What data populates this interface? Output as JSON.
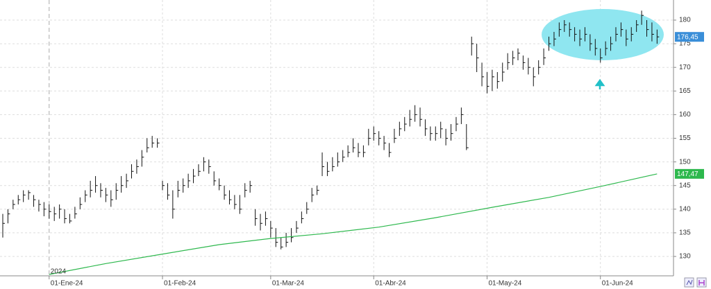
{
  "chart_data": {
    "type": "ohlc",
    "annotation": "2024",
    "categories": [
      null,
      null,
      null,
      null,
      null,
      null,
      null,
      null,
      null,
      "01-Ene-24",
      null,
      null,
      null,
      null,
      null,
      null,
      null,
      null,
      null,
      null,
      null,
      null,
      null,
      null,
      null,
      null,
      null,
      null,
      null,
      null,
      null,
      "01-Feb-24",
      null,
      null,
      null,
      null,
      null,
      null,
      null,
      null,
      null,
      null,
      null,
      null,
      null,
      null,
      null,
      null,
      null,
      null,
      null,
      null,
      "01-Mar-24",
      null,
      null,
      null,
      null,
      null,
      null,
      null,
      null,
      null,
      null,
      null,
      null,
      null,
      null,
      null,
      null,
      null,
      null,
      null,
      "01-Abr-24",
      null,
      null,
      null,
      null,
      null,
      null,
      null,
      null,
      null,
      null,
      null,
      null,
      null,
      null,
      null,
      null,
      null,
      null,
      null,
      null,
      null,
      "01-May-24",
      null,
      null,
      null,
      null,
      null,
      null,
      null,
      null,
      null,
      null,
      null,
      null,
      null,
      null,
      null,
      null,
      null,
      null,
      null,
      null,
      null,
      "01-Jun-24",
      null,
      null,
      null,
      null,
      null,
      null,
      null,
      null,
      null,
      null,
      null
    ],
    "high": [
      139,
      140,
      142,
      143,
      144,
      144,
      143,
      142,
      141.5,
      141,
      140.5,
      141,
      140,
      139,
      140.5,
      142.5,
      144,
      146,
      147,
      145.5,
      144.5,
      144,
      145.5,
      147,
      147.5,
      149.5,
      150.5,
      152.5,
      155,
      155.5,
      155,
      146,
      145.5,
      144,
      146,
      146.5,
      147.5,
      148.5,
      149.5,
      151,
      150.5,
      148,
      146.5,
      145,
      144,
      143,
      143,
      145.5,
      146,
      140,
      139,
      139.5,
      137.5,
      136,
      134,
      135,
      136,
      137.5,
      139.5,
      141.5,
      144.5,
      145,
      152,
      150,
      151,
      152,
      152.5,
      153.5,
      155,
      154,
      153.5,
      157,
      157.5,
      156.5,
      155.5,
      154,
      157,
      158.5,
      159.5,
      161,
      162,
      161.5,
      159,
      157.5,
      157.5,
      158.5,
      157,
      158,
      159.5,
      161.5,
      158,
      176.5,
      175,
      171,
      169,
      169.5,
      169,
      171,
      173,
      173.5,
      174,
      172.5,
      172,
      170,
      171.5,
      174,
      176.5,
      177.5,
      179.5,
      180,
      179.5,
      178.5,
      178,
      178.5,
      177,
      176,
      174,
      175.5,
      176.5,
      178.5,
      179.5,
      178,
      178.5,
      180,
      182,
      180,
      179.5,
      178
    ],
    "low": [
      134,
      137,
      140,
      141,
      141.5,
      142,
      140.5,
      139.5,
      138.5,
      138,
      137.5,
      138,
      137,
      137,
      138,
      140,
      141.5,
      142.5,
      143.5,
      142.5,
      141.5,
      140.5,
      142,
      143.5,
      144.5,
      146.5,
      147.5,
      149,
      152,
      153,
      153,
      144,
      142,
      138,
      142.5,
      143.5,
      144.5,
      145.5,
      147,
      148,
      147.5,
      145,
      144,
      142,
      141,
      140,
      139,
      142.5,
      143.5,
      136.5,
      135.5,
      136.5,
      134,
      132,
      131.5,
      132,
      133,
      135,
      137,
      139,
      141.5,
      143,
      147,
      147,
      148,
      149,
      150,
      151,
      152,
      151,
      151,
      153.5,
      154.5,
      153.5,
      152.5,
      151,
      154,
      155.5,
      156.5,
      157.5,
      158.5,
      157.5,
      155.5,
      154.5,
      154.5,
      155,
      153.5,
      154.5,
      156.5,
      158,
      152.5,
      172.5,
      169,
      166,
      164.5,
      165,
      165.5,
      167,
      169.5,
      170.5,
      171.5,
      169.5,
      168.5,
      166,
      168.5,
      170.5,
      173.5,
      174.5,
      176.5,
      177.5,
      176.5,
      175.5,
      174.5,
      175.5,
      173.5,
      172.5,
      171,
      172.5,
      173.5,
      175.5,
      176.5,
      174.5,
      175.5,
      177.5,
      179,
      176.5,
      175.5,
      175
    ],
    "close": [
      137,
      139,
      141,
      142,
      143,
      143.5,
      142,
      141,
      140,
      139.5,
      139,
      140,
      138,
      137.5,
      139,
      141,
      143,
      144,
      145,
      144,
      143,
      142,
      144,
      145,
      146,
      148,
      149,
      151,
      153,
      154,
      154,
      145,
      143,
      140,
      144,
      145,
      146,
      147,
      148,
      150,
      149,
      146,
      145,
      143,
      142,
      141,
      140,
      144,
      145,
      138,
      137,
      138,
      136,
      133,
      132,
      133,
      134,
      136,
      138,
      140,
      143,
      144,
      149,
      148,
      149,
      150,
      151,
      152,
      153,
      152,
      152,
      155,
      156,
      155,
      154,
      152,
      155,
      157,
      158,
      159,
      160,
      159,
      157,
      156,
      156,
      157,
      155,
      156,
      158,
      160,
      153,
      175,
      172,
      168,
      166,
      168,
      167,
      169,
      171,
      172,
      173,
      171,
      170,
      168,
      170,
      172,
      175,
      176,
      178,
      179,
      178,
      177,
      176,
      177,
      175,
      174,
      172,
      174,
      175,
      177,
      178,
      176,
      177,
      179,
      181,
      178,
      177,
      176.45
    ],
    "color": "#111111",
    "last_label": "176,45",
    "last_color": "#3a8ed8",
    "ma": {
      "color": "#2db84d",
      "x": [
        9,
        20,
        31,
        42,
        52,
        62,
        73,
        84,
        95,
        106,
        116,
        127
      ],
      "values": [
        126.2,
        128.5,
        130.5,
        132.5,
        133.8,
        134.8,
        136.2,
        138.2,
        140.4,
        142.5,
        144.8,
        147.47
      ],
      "value_label": "147,47"
    },
    "ylim": [
      125.9,
      184.25
    ],
    "yticks": [
      130,
      135,
      140,
      145,
      150,
      155,
      160,
      165,
      170,
      175,
      180
    ],
    "grid": true
  }
}
